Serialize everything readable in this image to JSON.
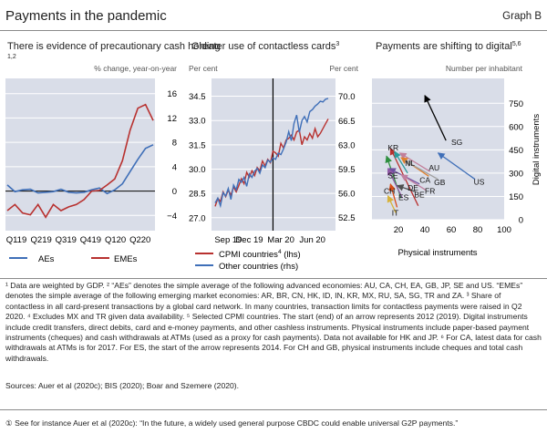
{
  "header": {
    "title": "Payments in the pandemic",
    "graph_label": "Graph B"
  },
  "chart_data": [
    {
      "type": "line",
      "title": "There is evidence of  precautionary cash holding",
      "title_sup": "1,2",
      "unit_label": "% change, year-on-year",
      "x_tick_labels": [
        "Q1 19",
        "Q2 19",
        "Q3 19",
        "Q4 19",
        "Q1 20",
        "Q2 20"
      ],
      "y_ticks": [
        16,
        12,
        8,
        4,
        0,
        -4
      ],
      "ylim": [
        -6.5,
        18.5
      ],
      "y_tick_labels": [
        "16",
        "12",
        "8",
        "4",
        "0",
        "−4"
      ],
      "x": [
        0,
        1,
        2,
        3,
        4,
        5,
        6,
        7,
        8,
        9,
        10,
        11,
        12,
        13,
        14,
        15,
        16,
        17,
        18,
        19
      ],
      "xlim": [
        0,
        19
      ],
      "series": [
        {
          "name": "AEs",
          "color": "#3f6fb8",
          "values": [
            1.0,
            -0.1,
            0.2,
            0.3,
            -0.3,
            -0.2,
            -0.1,
            0.3,
            -0.2,
            -0.3,
            -0.2,
            0.2,
            0.5,
            -0.4,
            0.2,
            1.2,
            3.2,
            5.2,
            7.0,
            7.6
          ]
        },
        {
          "name": "EMEs",
          "color": "#b8312f",
          "values": [
            -3.2,
            -2.2,
            -3.6,
            -3.9,
            -2.2,
            -4.3,
            -2.2,
            -3.2,
            -2.6,
            -2.2,
            -1.4,
            0.0,
            0.1,
            1.0,
            2.0,
            5.0,
            10.0,
            13.6,
            14.2,
            11.6
          ]
        }
      ]
    },
    {
      "type": "line",
      "title": "Greater use of contactless cards",
      "title_sup": "3",
      "left_unit": "Per cent",
      "right_unit": "Per cent",
      "x_tick_labels": [
        "Sep 19",
        "Dec 19",
        "Mar 20",
        "Jun 20"
      ],
      "left_ticks": [
        34.5,
        33.0,
        31.5,
        30.0,
        28.5,
        27.0
      ],
      "left_tick_labels": [
        "34.5",
        "33.0",
        "31.5",
        "30.0",
        "28.5",
        "27.0"
      ],
      "left_lim": [
        26.2,
        35.6
      ],
      "right_ticks": [
        70.0,
        66.5,
        63.0,
        59.5,
        56.0,
        52.5
      ],
      "right_tick_labels": [
        "70.0",
        "66.5",
        "63.0",
        "59.5",
        "56.0",
        "52.5"
      ],
      "right_lim": [
        50.6,
        72.6
      ],
      "marker_label": "Mar 20",
      "x": [
        0,
        1,
        2,
        3,
        4,
        5,
        6,
        7,
        8,
        9,
        10,
        11,
        12,
        13,
        14,
        15,
        16,
        17,
        18,
        19,
        20,
        21,
        22,
        23,
        24,
        25,
        26,
        27,
        28,
        29,
        30,
        31,
        32,
        33,
        34,
        35,
        36,
        37,
        38,
        39,
        40,
        41,
        42,
        43
      ],
      "xlim": [
        0,
        43
      ],
      "series": [
        {
          "name": "CPMI countries",
          "name_sup": "4",
          "axis_label": "(lhs)",
          "axis": "left",
          "color": "#b8312f",
          "values": [
            27.7,
            28.2,
            28.0,
            28.6,
            28.3,
            28.7,
            28.4,
            28.9,
            28.6,
            29.0,
            29.4,
            29.1,
            29.8,
            29.5,
            29.9,
            29.6,
            30.1,
            29.9,
            30.5,
            30.2,
            30.6,
            30.4,
            31.1,
            31.0,
            30.8,
            31.6,
            31.3,
            31.8,
            31.9,
            32.1,
            31.8,
            32.3,
            32.4,
            31.5,
            32.0,
            31.8,
            32.2,
            31.9,
            32.5,
            32.0,
            32.2,
            32.5,
            32.8,
            33.1
          ]
        },
        {
          "name": "Other countries",
          "axis_label": "(rhs)",
          "axis": "right",
          "color": "#3f6fb8",
          "values": [
            54.6,
            55.3,
            54.2,
            56.1,
            55.6,
            56.7,
            55.1,
            57.2,
            56.5,
            58.0,
            57.6,
            58.3,
            57.0,
            58.8,
            58.3,
            59.2,
            59.6,
            58.9,
            60.1,
            59.7,
            60.8,
            60.5,
            61.1,
            60.9,
            61.8,
            61.6,
            62.4,
            63.4,
            64.9,
            63.6,
            66.1,
            67.3,
            64.8,
            66.5,
            67.1,
            66.3,
            67.8,
            68.1,
            68.6,
            68.9,
            69.3,
            69.2,
            69.6,
            69.7
          ]
        }
      ]
    },
    {
      "type": "scatter",
      "title": "Payments are shifting to digital",
      "title_sup": "5,6",
      "unit_label": "Number per inhabitant",
      "xlabel": "Physical instruments",
      "ylabel": "Digital instruments",
      "xlim": [
        0,
        100
      ],
      "ylim": [
        0,
        910
      ],
      "x_ticks": [
        20,
        40,
        60,
        80,
        100
      ],
      "x_tick_labels": [
        "20",
        "40",
        "60",
        "80",
        "100"
      ],
      "y_ticks": [
        0,
        150,
        300,
        450,
        600,
        750
      ],
      "y_tick_labels": [
        "0",
        "150",
        "300",
        "450",
        "600",
        "750"
      ],
      "arrows": [
        {
          "label": "SG",
          "from": [
            56,
            510
          ],
          "to": [
            40,
            800
          ],
          "color": "#000000"
        },
        {
          "label": "KR",
          "from": [
            35,
            90
          ],
          "to": [
            14,
            460
          ],
          "color": "#b8312f"
        },
        {
          "label": "NL",
          "from": [
            27,
            300
          ],
          "to": [
            17,
            440
          ],
          "color": "#2a9a9a"
        },
        {
          "label": "SE",
          "from": [
            22,
            140
          ],
          "to": [
            11,
            410
          ],
          "color": "#2f8f3f"
        },
        {
          "label": "AU",
          "from": [
            44,
            310
          ],
          "to": [
            21,
            430
          ],
          "color": "#c27f9a"
        },
        {
          "label": "CA",
          "from": [
            43,
            280
          ],
          "to": [
            22,
            400
          ],
          "color": "#e07f2b"
        },
        {
          "label": "GB",
          "from": [
            50,
            260
          ],
          "to": [
            25,
            380
          ],
          "color": "#a0a0a0"
        },
        {
          "label": "US",
          "from": [
            78,
            260
          ],
          "to": [
            50,
            430
          ],
          "color": "#3f6fb8"
        },
        {
          "label": "DE",
          "from": [
            36,
            230
          ],
          "to": [
            13,
            330
          ],
          "color": "#6f4f9f"
        },
        {
          "label": "FR",
          "from": [
            41,
            190
          ],
          "to": [
            22,
            290
          ],
          "color": "#c07fa0"
        },
        {
          "label": "BE",
          "from": [
            33,
            180
          ],
          "to": [
            19,
            220
          ],
          "color": "#4f4f4f"
        },
        {
          "label": "CH",
          "from": [
            19,
            80
          ],
          "to": [
            14,
            230
          ],
          "color": "#d84b16"
        },
        {
          "label": "ES",
          "from": [
            23,
            140
          ],
          "to": [
            12,
            330
          ],
          "color": "#8f5aa5"
        },
        {
          "label": "IT",
          "from": [
            18,
            45
          ],
          "to": [
            12,
            155
          ],
          "color": "#d7b23a"
        }
      ]
    }
  ],
  "legends": {
    "left": [
      {
        "label": "AEs",
        "color": "#3f6fb8"
      },
      {
        "label": "EMEs",
        "color": "#b8312f"
      }
    ],
    "middle": [
      {
        "label": "CPMI countries",
        "sup": "4",
        "suffix": " (lhs)",
        "color": "#b8312f"
      },
      {
        "label": "Other countries",
        "suffix": " (rhs)",
        "color": "#3f6fb8"
      }
    ]
  },
  "notes": "¹ Data are weighted by GDP.  ² “AEs” denotes the simple average of the following advanced economies: AU, CA, CH, EA, GB, JP, SE and US. “EMEs” denotes the simple average of the following emerging market economies: AR, BR, CN, HK, ID, IN, KR, MX, RU, SA, SG, TR and ZA.  ³ Share of contactless in all card-present transactions by a global card network. In many countries, transaction limits for contactless payments were raised in Q2 2020.  ⁴ Excludes MX and TR given data availability.  ⁵ Selected CPMI countries. The start (end) of an arrow represents 2012 (2019). Digital instruments include credit transfers, direct debits, card and e-money payments, and other cashless instruments. Physical instruments include paper-based payment instruments (cheques) and cash withdrawals at ATMs (used as a proxy for cash payments). Data not available for HK and JP.  ⁶ For CA, latest data for cash withdrawals at ATMs is for 2017. For ES, the start of the arrow represents 2014. For CH and GB, physical instruments include cheques and total cash withdrawals.",
  "sources": "Sources: Auer et al (2020c); BIS (2020); Boar and Szemere (2020).",
  "footnote": "① See for instance Auer et al (2020c): “In the future, a widely used general purpose CBDC could enable universal G2P payments.”"
}
